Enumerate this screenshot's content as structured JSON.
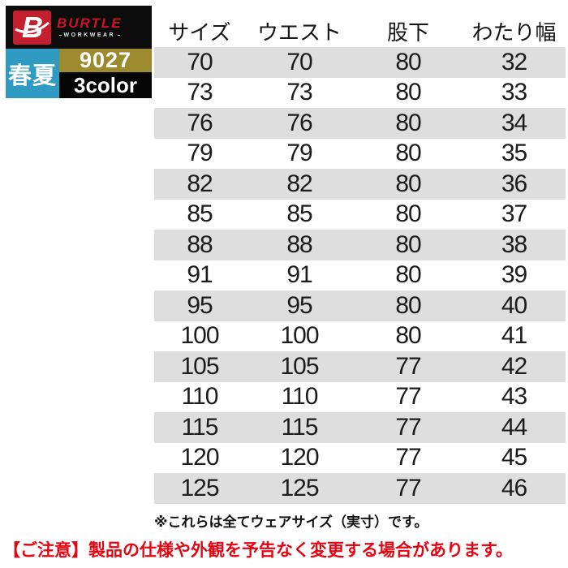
{
  "brand": {
    "logo_letter": "B",
    "name": "BURTLE",
    "subtitle": "WORKWEAR",
    "season_label": "春夏",
    "product_code": "9027",
    "color_count": "3color",
    "colors": {
      "logo_red": "#c41f2e",
      "brand_text_red": "#d01228",
      "season_teal": "#2f9ac2",
      "code_gold": "#9c8a2e",
      "block_black": "#0c0c0c"
    }
  },
  "table": {
    "headers": [
      "サイズ",
      "ウエスト",
      "股下",
      "わたり幅"
    ],
    "rows": [
      [
        70,
        70,
        80,
        32
      ],
      [
        73,
        73,
        80,
        33
      ],
      [
        76,
        76,
        80,
        34
      ],
      [
        79,
        79,
        80,
        35
      ],
      [
        82,
        82,
        80,
        36
      ],
      [
        85,
        85,
        80,
        37
      ],
      [
        88,
        88,
        80,
        38
      ],
      [
        91,
        91,
        80,
        39
      ],
      [
        95,
        95,
        80,
        40
      ],
      [
        100,
        100,
        80,
        41
      ],
      [
        105,
        105,
        77,
        42
      ],
      [
        110,
        110,
        77,
        43
      ],
      [
        115,
        115,
        77,
        44
      ],
      [
        120,
        120,
        77,
        45
      ],
      [
        125,
        125,
        77,
        46
      ]
    ],
    "stripe_color": "#dedede"
  },
  "notes": {
    "size_note": "※これらは全てウェアサイズ（実寸）です。",
    "warning": "【ご注意】製品の仕様や外観を予告なく変更する場合があります。"
  },
  "chart_data": {
    "type": "table",
    "title": "BURTLE 9027 サイズ表",
    "columns": [
      "サイズ",
      "ウエスト",
      "股下",
      "わたり幅"
    ],
    "rows": [
      [
        70,
        70,
        80,
        32
      ],
      [
        73,
        73,
        80,
        33
      ],
      [
        76,
        76,
        80,
        34
      ],
      [
        79,
        79,
        80,
        35
      ],
      [
        82,
        82,
        80,
        36
      ],
      [
        85,
        85,
        80,
        37
      ],
      [
        88,
        88,
        80,
        38
      ],
      [
        91,
        91,
        80,
        39
      ],
      [
        95,
        95,
        80,
        40
      ],
      [
        100,
        100,
        80,
        41
      ],
      [
        105,
        105,
        77,
        42
      ],
      [
        110,
        110,
        77,
        43
      ],
      [
        115,
        115,
        77,
        44
      ],
      [
        120,
        120,
        77,
        45
      ],
      [
        125,
        125,
        77,
        46
      ]
    ],
    "footnotes": [
      "※これらは全てウェアサイズ（実寸）です。",
      "【ご注意】製品の仕様や外観を予告なく変更する場合があります。"
    ]
  }
}
